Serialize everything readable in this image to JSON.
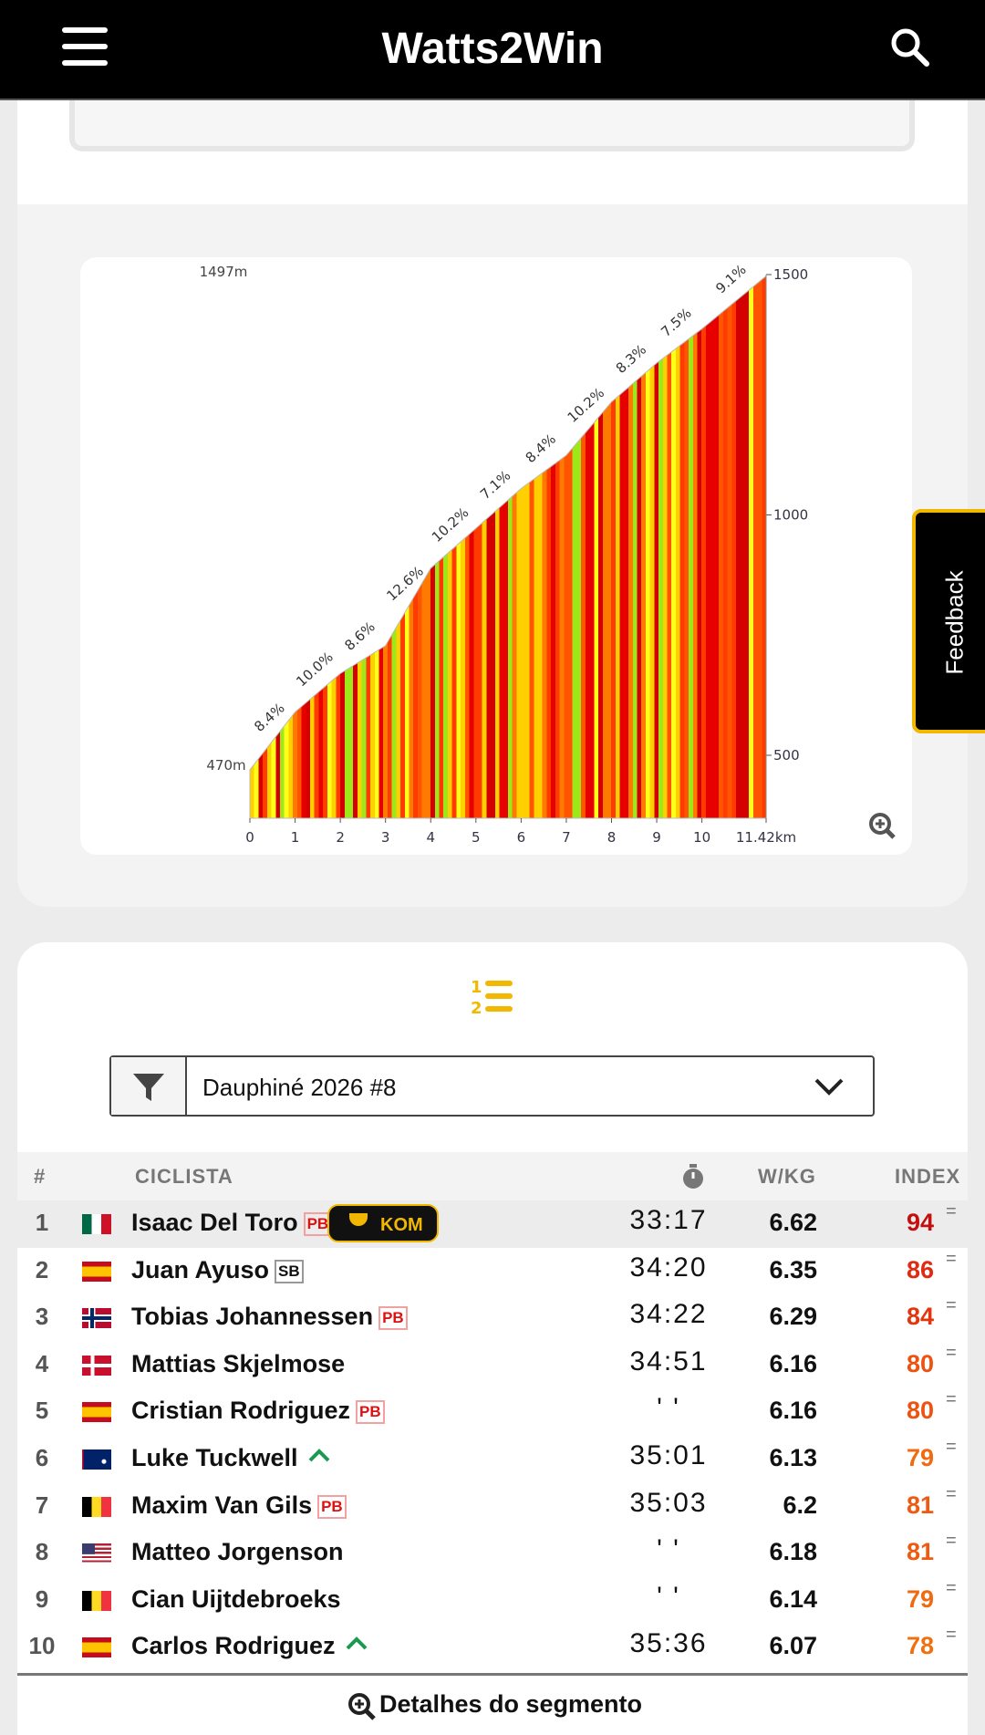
{
  "header": {
    "title": "Watts2Win"
  },
  "feedback": "Feedback",
  "chart_data": {
    "type": "area",
    "x": [
      0,
      1,
      2,
      3,
      4,
      5,
      6,
      7,
      8,
      9,
      10,
      11.42
    ],
    "values": [
      470,
      590,
      670,
      728,
      889,
      972,
      1055,
      1124,
      1235,
      1316,
      1387,
      1497
    ],
    "annotations": [
      "8.4%",
      "10.0%",
      "8.6%",
      "12.6%",
      "10.2%",
      "7.1%",
      "8.4%",
      "10.2%",
      "8.3%",
      "7.5%",
      "9.1%"
    ],
    "max_label": "1497m",
    "min_label": "470m",
    "xlim": [
      0,
      11.42
    ],
    "ylim": [
      369,
      1500
    ],
    "xticks": [
      0,
      1,
      2,
      3,
      4,
      5,
      6,
      7,
      8,
      9,
      10,
      {
        "value": 11.42,
        "label": "11.42km"
      }
    ],
    "yticks": [
      500,
      1000,
      1500
    ]
  },
  "filter": {
    "selected": "Dauphiné 2026 #8"
  },
  "table": {
    "columns": [
      "#",
      "CICLISTA",
      "W/KG",
      "INDEX"
    ],
    "rows": [
      {
        "rank": 1,
        "name": "Isaac Del Toro",
        "badge": "PB",
        "award": "KOM",
        "time": "33:17",
        "wkg": 6.62,
        "index": 94,
        "trend": "="
      },
      {
        "rank": 2,
        "name": "Juan Ayuso",
        "badge": "SB",
        "time": "34:20",
        "wkg": 6.35,
        "index": 86,
        "trend": "="
      },
      {
        "rank": 3,
        "name": "Tobias Johannessen",
        "badge": "PB",
        "time": "34:22",
        "wkg": 6.29,
        "index": 84,
        "trend": "="
      },
      {
        "rank": 4,
        "name": "Mattias Skjelmose",
        "time": "34:51",
        "wkg": 6.16,
        "index": 80,
        "trend": "="
      },
      {
        "rank": 5,
        "name": "Cristian Rodriguez",
        "badge": "PB",
        "time": "' '",
        "wkg": 6.16,
        "index": 80,
        "trend": "="
      },
      {
        "rank": 6,
        "name": "Luke Tuckwell",
        "arrow": true,
        "time": "35:01",
        "wkg": 6.13,
        "index": 79,
        "trend": "="
      },
      {
        "rank": 7,
        "name": "Maxim Van Gils",
        "badge": "PB",
        "time": "35:03",
        "wkg": 6.2,
        "index": 81,
        "trend": "="
      },
      {
        "rank": 8,
        "name": "Matteo Jorgenson",
        "time": "' '",
        "wkg": 6.18,
        "index": 81,
        "trend": "="
      },
      {
        "rank": 9,
        "name": "Cian Uijtdebroeks",
        "time": "' '",
        "wkg": 6.14,
        "index": 79,
        "trend": "="
      },
      {
        "rank": 10,
        "name": "Carlos Rodriguez",
        "arrow": true,
        "time": "35:36",
        "wkg": 6.07,
        "index": 78,
        "trend": "="
      }
    ]
  },
  "footer": {
    "link": "Detalhes do segmento"
  }
}
